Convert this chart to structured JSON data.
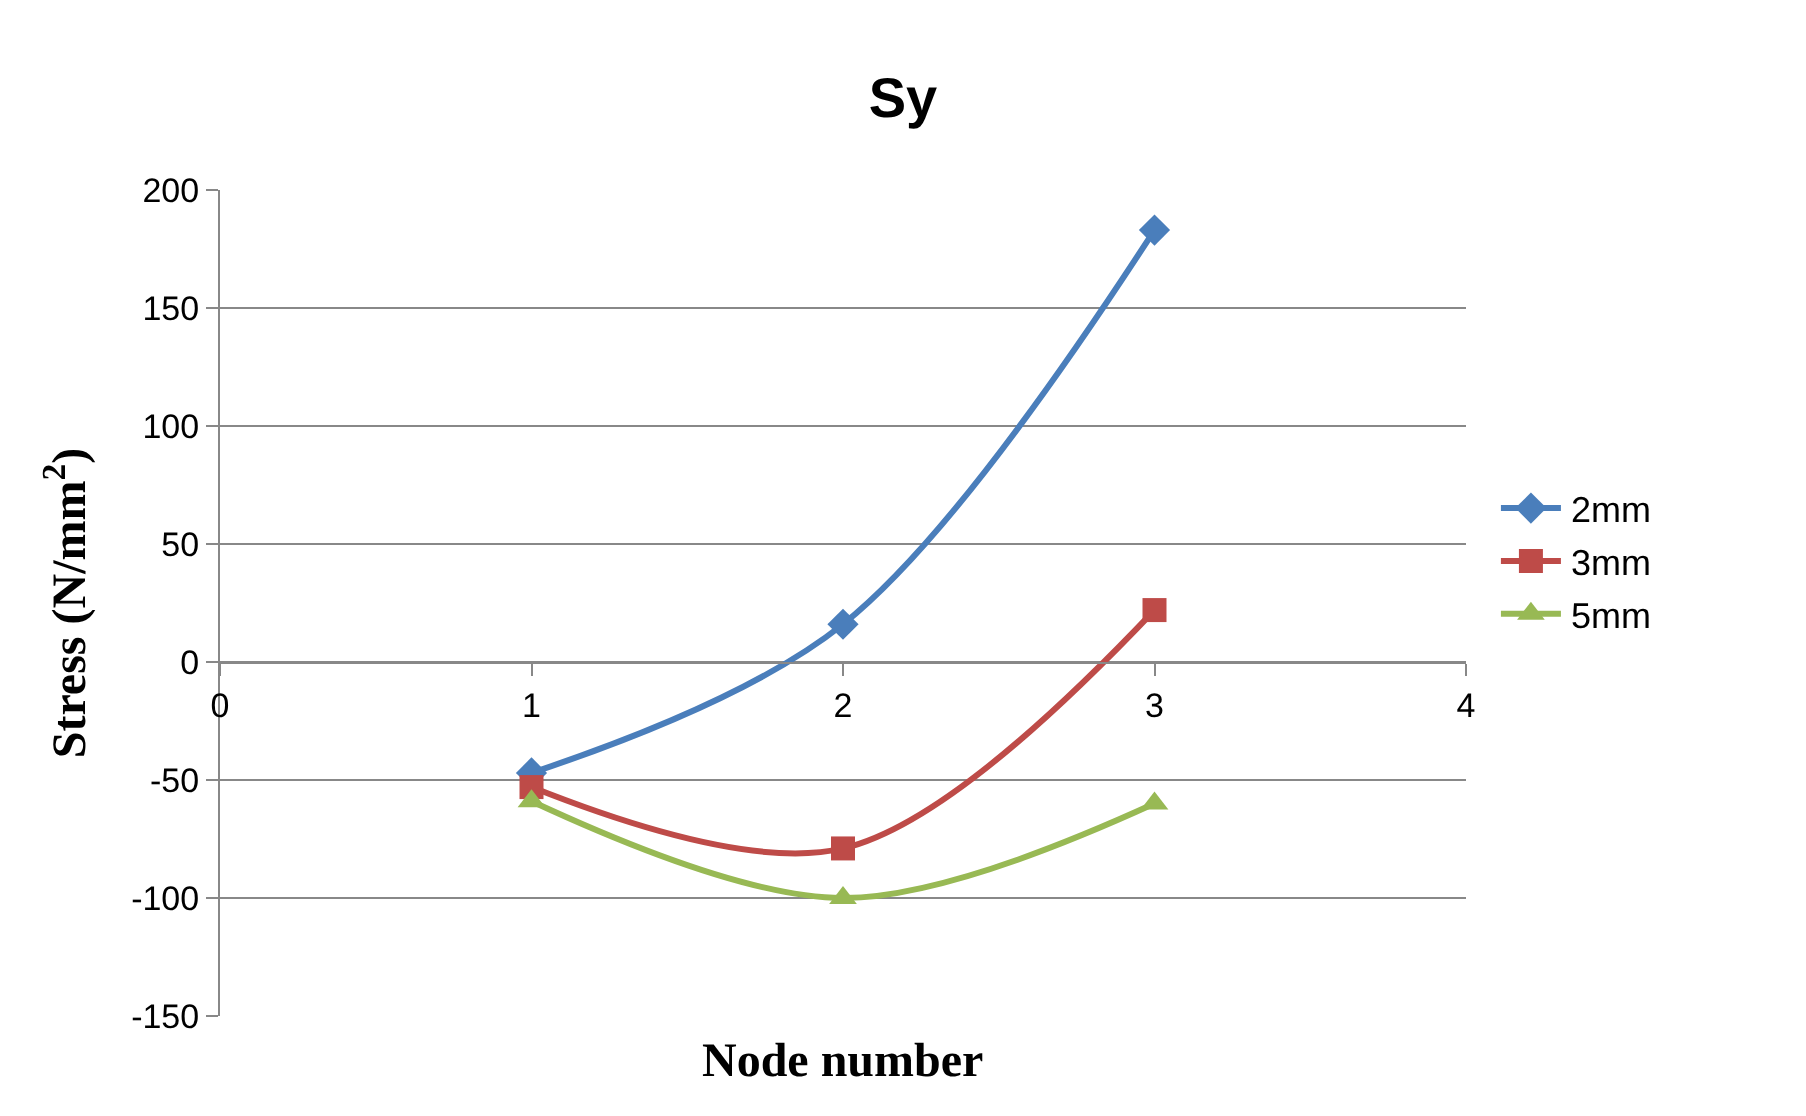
{
  "chart_data": {
    "type": "line",
    "title": "Sy",
    "xlabel": "Node number",
    "ylabel": "Stress (N/mm$^{2}$)",
    "x": [
      1,
      2,
      3
    ],
    "series": [
      {
        "name": "2mm",
        "color": "#4a7ebb",
        "values": [
          -47,
          16,
          183
        ],
        "marker": "diamond"
      },
      {
        "name": "3mm",
        "color": "#be4b48",
        "values": [
          -53,
          -79,
          22
        ],
        "marker": "square"
      },
      {
        "name": "5mm",
        "color": "#98b954",
        "values": [
          -59,
          -100,
          -60
        ],
        "marker": "triangle"
      }
    ],
    "xlim": [
      0,
      4
    ],
    "xticks": [
      0,
      1,
      2,
      3,
      4
    ],
    "ylim": [
      -150,
      200
    ],
    "yticks": [
      -150,
      -100,
      -50,
      0,
      50,
      100,
      150,
      200
    ],
    "grid": "y",
    "legend": "right",
    "line_style": "solid"
  }
}
